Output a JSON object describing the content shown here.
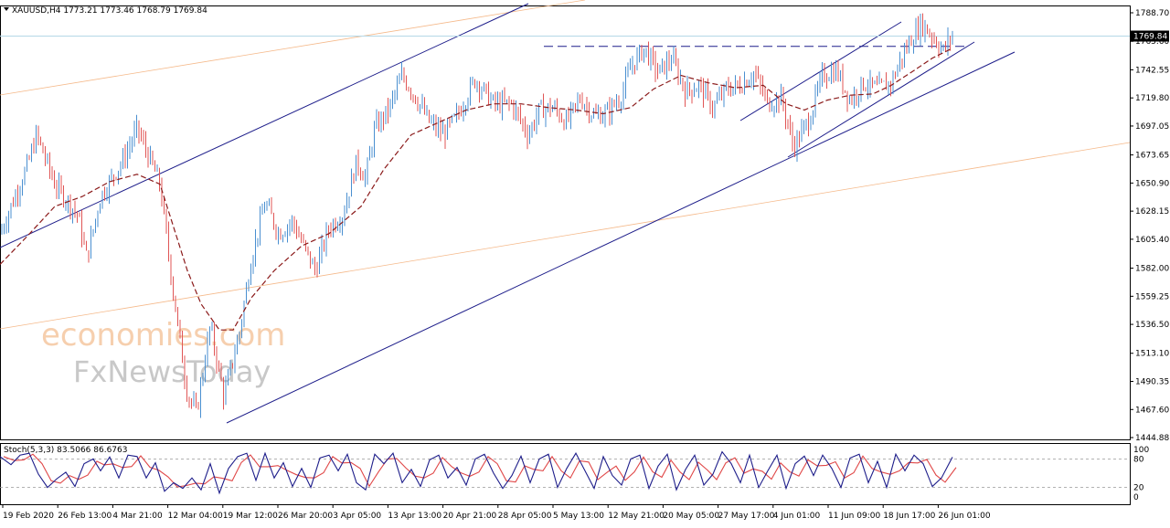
{
  "chart_data": {
    "type": "candlestick",
    "symbol": "XAUUSD,H4",
    "ohlc_text": "1773.21 1773.46 1768.79 1769.84",
    "last_price": "1769.84",
    "ylim": [
      1444.88,
      1788.7
    ],
    "y_ticks": [
      "1788.70",
      "1765.60",
      "1742.55",
      "1719.80",
      "1697.05",
      "1673.65",
      "1650.90",
      "1628.15",
      "1605.40",
      "1582.00",
      "1559.25",
      "1536.50",
      "1513.10",
      "1490.35",
      "1467.60",
      "1444.88"
    ],
    "x_ticks": [
      "19 Feb 2020",
      "26 Feb 13:00",
      "4 Mar 21:00",
      "12 Mar 04:00",
      "19 Mar 12:00",
      "26 Mar 20:00",
      "3 Apr 05:00",
      "13 Apr 13:00",
      "20 Apr 21:00",
      "28 Apr 05:00",
      "5 May 13:00",
      "12 May 21:00",
      "20 May 05:00",
      "27 May 17:00",
      "4 Jun 01:00",
      "11 Jun 09:00",
      "18 Jun 17:00",
      "26 Jun 01:00"
    ],
    "price_path": [
      [
        0,
        1610
      ],
      [
        30,
        1665
      ],
      [
        40,
        1690
      ],
      [
        60,
        1650
      ],
      [
        85,
        1625
      ],
      [
        95,
        1590
      ],
      [
        110,
        1640
      ],
      [
        135,
        1670
      ],
      [
        150,
        1695
      ],
      [
        175,
        1650
      ],
      [
        190,
        1560
      ],
      [
        205,
        1480
      ],
      [
        215,
        1465
      ],
      [
        230,
        1535
      ],
      [
        245,
        1478
      ],
      [
        262,
        1530
      ],
      [
        275,
        1590
      ],
      [
        290,
        1635
      ],
      [
        305,
        1610
      ],
      [
        320,
        1620
      ],
      [
        335,
        1595
      ],
      [
        345,
        1580
      ],
      [
        360,
        1615
      ],
      [
        375,
        1625
      ],
      [
        390,
        1668
      ],
      [
        400,
        1655
      ],
      [
        410,
        1695
      ],
      [
        425,
        1710
      ],
      [
        440,
        1738
      ],
      [
        455,
        1720
      ],
      [
        470,
        1700
      ],
      [
        485,
        1690
      ],
      [
        500,
        1705
      ],
      [
        520,
        1735
      ],
      [
        540,
        1715
      ],
      [
        560,
        1715
      ],
      [
        578,
        1690
      ],
      [
        590,
        1710
      ],
      [
        605,
        1712
      ],
      [
        620,
        1700
      ],
      [
        635,
        1720
      ],
      [
        650,
        1705
      ],
      [
        665,
        1708
      ],
      [
        680,
        1722
      ],
      [
        690,
        1745
      ],
      [
        705,
        1760
      ],
      [
        720,
        1740
      ],
      [
        735,
        1752
      ],
      [
        750,
        1725
      ],
      [
        765,
        1730
      ],
      [
        780,
        1712
      ],
      [
        795,
        1727
      ],
      [
        810,
        1730
      ],
      [
        825,
        1740
      ],
      [
        840,
        1715
      ],
      [
        855,
        1720
      ],
      [
        868,
        1680
      ],
      [
        885,
        1702
      ],
      [
        900,
        1738
      ],
      [
        915,
        1742
      ],
      [
        930,
        1718
      ],
      [
        945,
        1732
      ],
      [
        960,
        1727
      ],
      [
        975,
        1732
      ],
      [
        985,
        1750
      ],
      [
        995,
        1765
      ],
      [
        1008,
        1780
      ],
      [
        1020,
        1770
      ],
      [
        1032,
        1758
      ],
      [
        1042,
        1771
      ]
    ],
    "ma_path": [
      [
        0,
        1585
      ],
      [
        30,
        1608
      ],
      [
        60,
        1632
      ],
      [
        90,
        1640
      ],
      [
        120,
        1652
      ],
      [
        150,
        1658
      ],
      [
        175,
        1650
      ],
      [
        190,
        1615
      ],
      [
        205,
        1580
      ],
      [
        220,
        1553
      ],
      [
        240,
        1532
      ],
      [
        255,
        1532
      ],
      [
        275,
        1558
      ],
      [
        300,
        1580
      ],
      [
        330,
        1600
      ],
      [
        360,
        1610
      ],
      [
        395,
        1632
      ],
      [
        420,
        1662
      ],
      [
        450,
        1690
      ],
      [
        480,
        1700
      ],
      [
        510,
        1710
      ],
      [
        540,
        1715
      ],
      [
        570,
        1715
      ],
      [
        600,
        1712
      ],
      [
        630,
        1710
      ],
      [
        660,
        1707
      ],
      [
        690,
        1712
      ],
      [
        715,
        1727
      ],
      [
        745,
        1738
      ],
      [
        775,
        1732
      ],
      [
        805,
        1728
      ],
      [
        835,
        1730
      ],
      [
        860,
        1715
      ],
      [
        880,
        1710
      ],
      [
        905,
        1718
      ],
      [
        930,
        1722
      ],
      [
        955,
        1723
      ],
      [
        975,
        1730
      ],
      [
        1000,
        1742
      ],
      [
        1020,
        1752
      ],
      [
        1042,
        1760
      ]
    ],
    "resistance_level": 1761.5,
    "stoch_label": "Stoch(5,3,3) 83.5066 86.6763",
    "stoch_ticks": [
      "100",
      "80",
      "20",
      "0"
    ],
    "stoch_levels": [
      80,
      20
    ],
    "stoch_main": [
      [
        0,
        85
      ],
      [
        12,
        68
      ],
      [
        22,
        88
      ],
      [
        32,
        92
      ],
      [
        42,
        48
      ],
      [
        52,
        20
      ],
      [
        62,
        38
      ],
      [
        72,
        52
      ],
      [
        82,
        22
      ],
      [
        92,
        70
      ],
      [
        102,
        80
      ],
      [
        110,
        55
      ],
      [
        120,
        84
      ],
      [
        130,
        40
      ],
      [
        140,
        88
      ],
      [
        150,
        85
      ],
      [
        160,
        40
      ],
      [
        170,
        72
      ],
      [
        180,
        12
      ],
      [
        190,
        30
      ],
      [
        200,
        18
      ],
      [
        210,
        40
      ],
      [
        220,
        15
      ],
      [
        230,
        70
      ],
      [
        240,
        8
      ],
      [
        250,
        60
      ],
      [
        260,
        85
      ],
      [
        270,
        92
      ],
      [
        280,
        35
      ],
      [
        290,
        92
      ],
      [
        300,
        40
      ],
      [
        310,
        72
      ],
      [
        320,
        22
      ],
      [
        330,
        60
      ],
      [
        340,
        20
      ],
      [
        350,
        82
      ],
      [
        360,
        88
      ],
      [
        370,
        55
      ],
      [
        380,
        90
      ],
      [
        390,
        30
      ],
      [
        400,
        15
      ],
      [
        410,
        90
      ],
      [
        420,
        70
      ],
      [
        430,
        92
      ],
      [
        440,
        30
      ],
      [
        450,
        58
      ],
      [
        460,
        22
      ],
      [
        470,
        78
      ],
      [
        480,
        88
      ],
      [
        490,
        40
      ],
      [
        500,
        62
      ],
      [
        510,
        25
      ],
      [
        520,
        80
      ],
      [
        530,
        90
      ],
      [
        540,
        50
      ],
      [
        550,
        18
      ],
      [
        560,
        45
      ],
      [
        570,
        86
      ],
      [
        580,
        30
      ],
      [
        590,
        80
      ],
      [
        600,
        90
      ],
      [
        610,
        20
      ],
      [
        620,
        60
      ],
      [
        630,
        92
      ],
      [
        640,
        55
      ],
      [
        650,
        18
      ],
      [
        660,
        85
      ],
      [
        670,
        45
      ],
      [
        680,
        25
      ],
      [
        690,
        80
      ],
      [
        700,
        88
      ],
      [
        710,
        18
      ],
      [
        720,
        65
      ],
      [
        730,
        90
      ],
      [
        740,
        15
      ],
      [
        750,
        58
      ],
      [
        760,
        88
      ],
      [
        770,
        25
      ],
      [
        780,
        48
      ],
      [
        790,
        95
      ],
      [
        800,
        70
      ],
      [
        810,
        30
      ],
      [
        820,
        88
      ],
      [
        830,
        20
      ],
      [
        840,
        55
      ],
      [
        850,
        88
      ],
      [
        860,
        18
      ],
      [
        870,
        70
      ],
      [
        880,
        86
      ],
      [
        890,
        45
      ],
      [
        900,
        88
      ],
      [
        910,
        60
      ],
      [
        920,
        20
      ],
      [
        930,
        82
      ],
      [
        940,
        90
      ],
      [
        950,
        30
      ],
      [
        960,
        75
      ],
      [
        970,
        20
      ],
      [
        980,
        90
      ],
      [
        990,
        55
      ],
      [
        1000,
        88
      ],
      [
        1010,
        70
      ],
      [
        1020,
        22
      ],
      [
        1030,
        40
      ],
      [
        1042,
        84
      ]
    ],
    "watermark_1": "economies.com",
    "watermark_2": "FxNewsToday"
  }
}
